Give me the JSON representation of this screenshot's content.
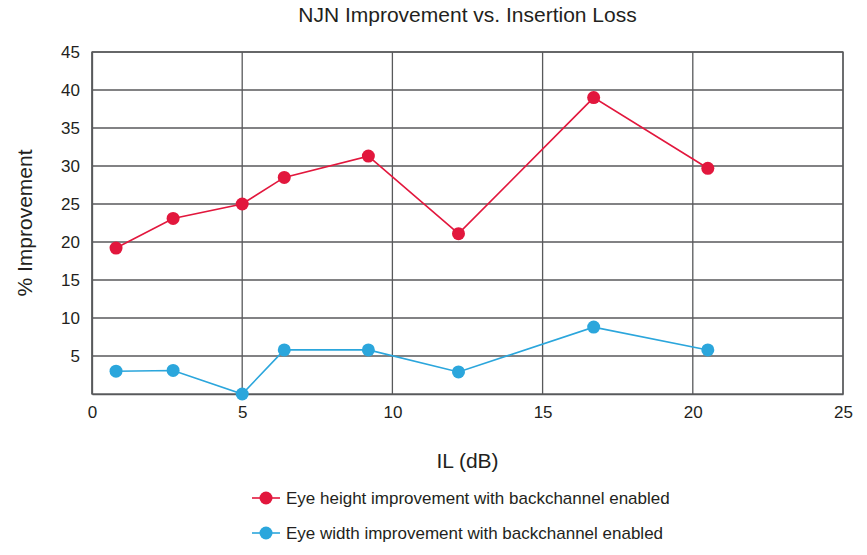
{
  "chart_data": {
    "type": "line",
    "title": "NJN Improvement vs. Insertion Loss",
    "x_label": "IL (dB)",
    "y_label": "% Improvement",
    "x": [
      0.8,
      2.7,
      5.0,
      6.4,
      9.2,
      12.2,
      16.7,
      20.5
    ],
    "series": [
      {
        "name": "Eye height improvement with backchannel enabled",
        "color": "#e2173d",
        "marker": "circle",
        "values": [
          19.2,
          23.1,
          25.0,
          28.5,
          31.3,
          21.1,
          39.0,
          29.7
        ]
      },
      {
        "name": "Eye width improvement with backchannel enabled",
        "color": "#2ba6dc",
        "marker": "circle",
        "values": [
          3.0,
          3.1,
          0.0,
          5.8,
          5.8,
          2.9,
          8.8,
          5.8
        ]
      }
    ],
    "xlim": [
      0,
      25
    ],
    "xticks": [
      0,
      5,
      10,
      15,
      20,
      25
    ],
    "ylim": [
      0,
      45
    ],
    "yticks": [
      5,
      10,
      15,
      20,
      25,
      30,
      35,
      40,
      45
    ],
    "grid": true,
    "legend": "bottom"
  }
}
